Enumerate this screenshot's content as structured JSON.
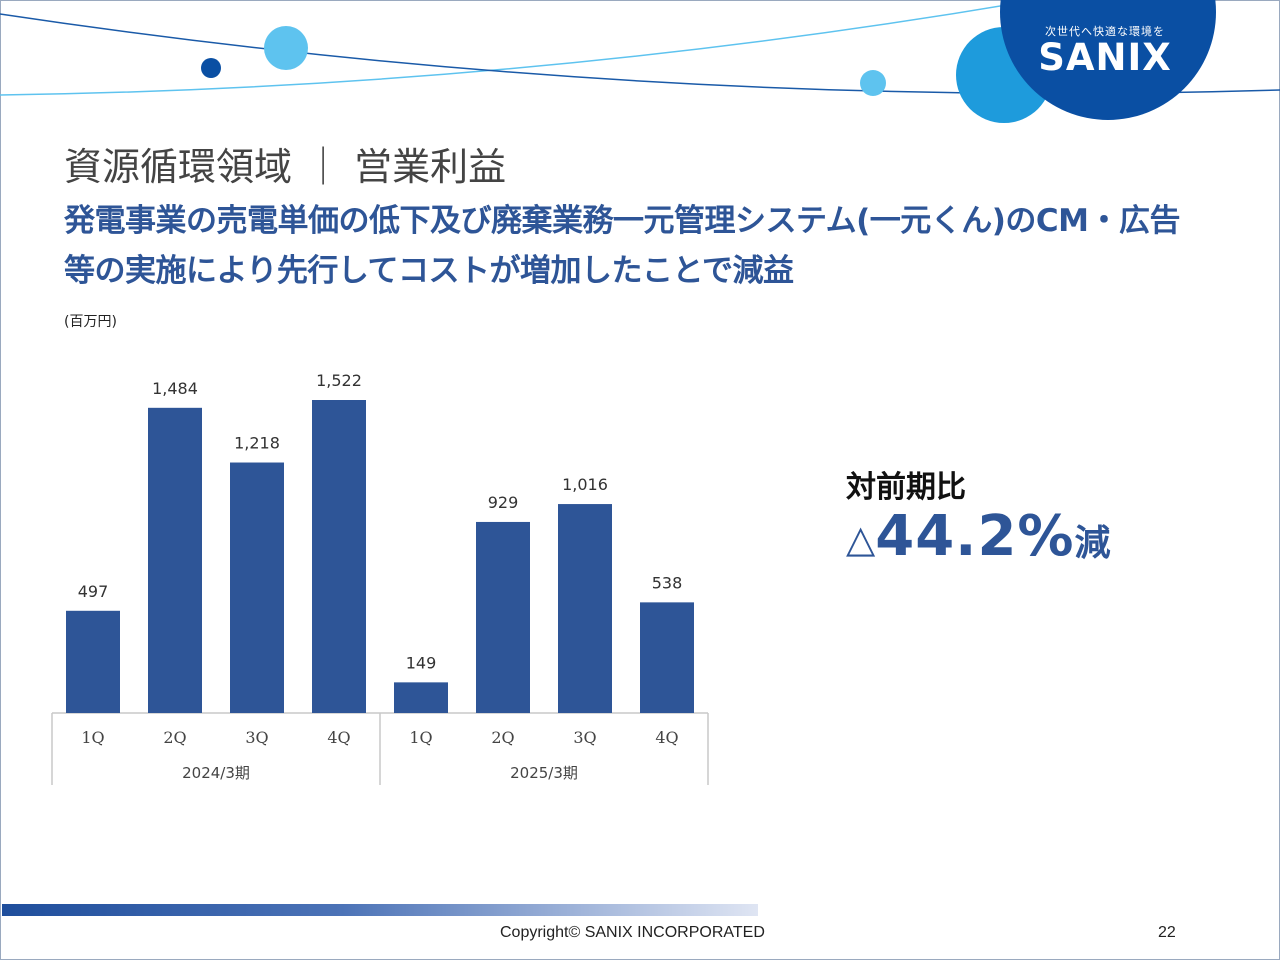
{
  "logo": {
    "tagline": "次世代へ快適な環境を",
    "name": "SANIX"
  },
  "header": {
    "title": "資源循環領域 ｜ 営業利益",
    "subtitle": "発電事業の売電単価の低下及び廃棄業務一元管理システム(一元くん)のCM・広告等の実施により先行してコストが増加したことで減益"
  },
  "colors": {
    "bar": "#2e5597",
    "accent": "#2e5597",
    "logo_blue": "#0a4fa3",
    "bubble": "#5ec3ef"
  },
  "chart_data": {
    "type": "bar",
    "unit_label": "(百万円)",
    "groups": [
      {
        "name": "2024/3期",
        "categories": [
          "1Q",
          "2Q",
          "3Q",
          "4Q"
        ],
        "values": [
          497,
          1484,
          1218,
          1522
        ],
        "labels": [
          "497",
          "1,484",
          "1,218",
          "1,522"
        ]
      },
      {
        "name": "2025/3期",
        "categories": [
          "1Q",
          "2Q",
          "3Q",
          "4Q"
        ],
        "values": [
          149,
          929,
          1016,
          538
        ],
        "labels": [
          "149",
          "929",
          "1,016",
          "538"
        ]
      }
    ],
    "ylim": [
      0,
      1522
    ],
    "grid": false,
    "legend": "none"
  },
  "comparison": {
    "label": "対前期比",
    "triangle": "△",
    "value": "44.2%",
    "suffix": "減"
  },
  "footer": {
    "copyright": "Copyright©  SANIX INCORPORATED",
    "page": "22"
  }
}
